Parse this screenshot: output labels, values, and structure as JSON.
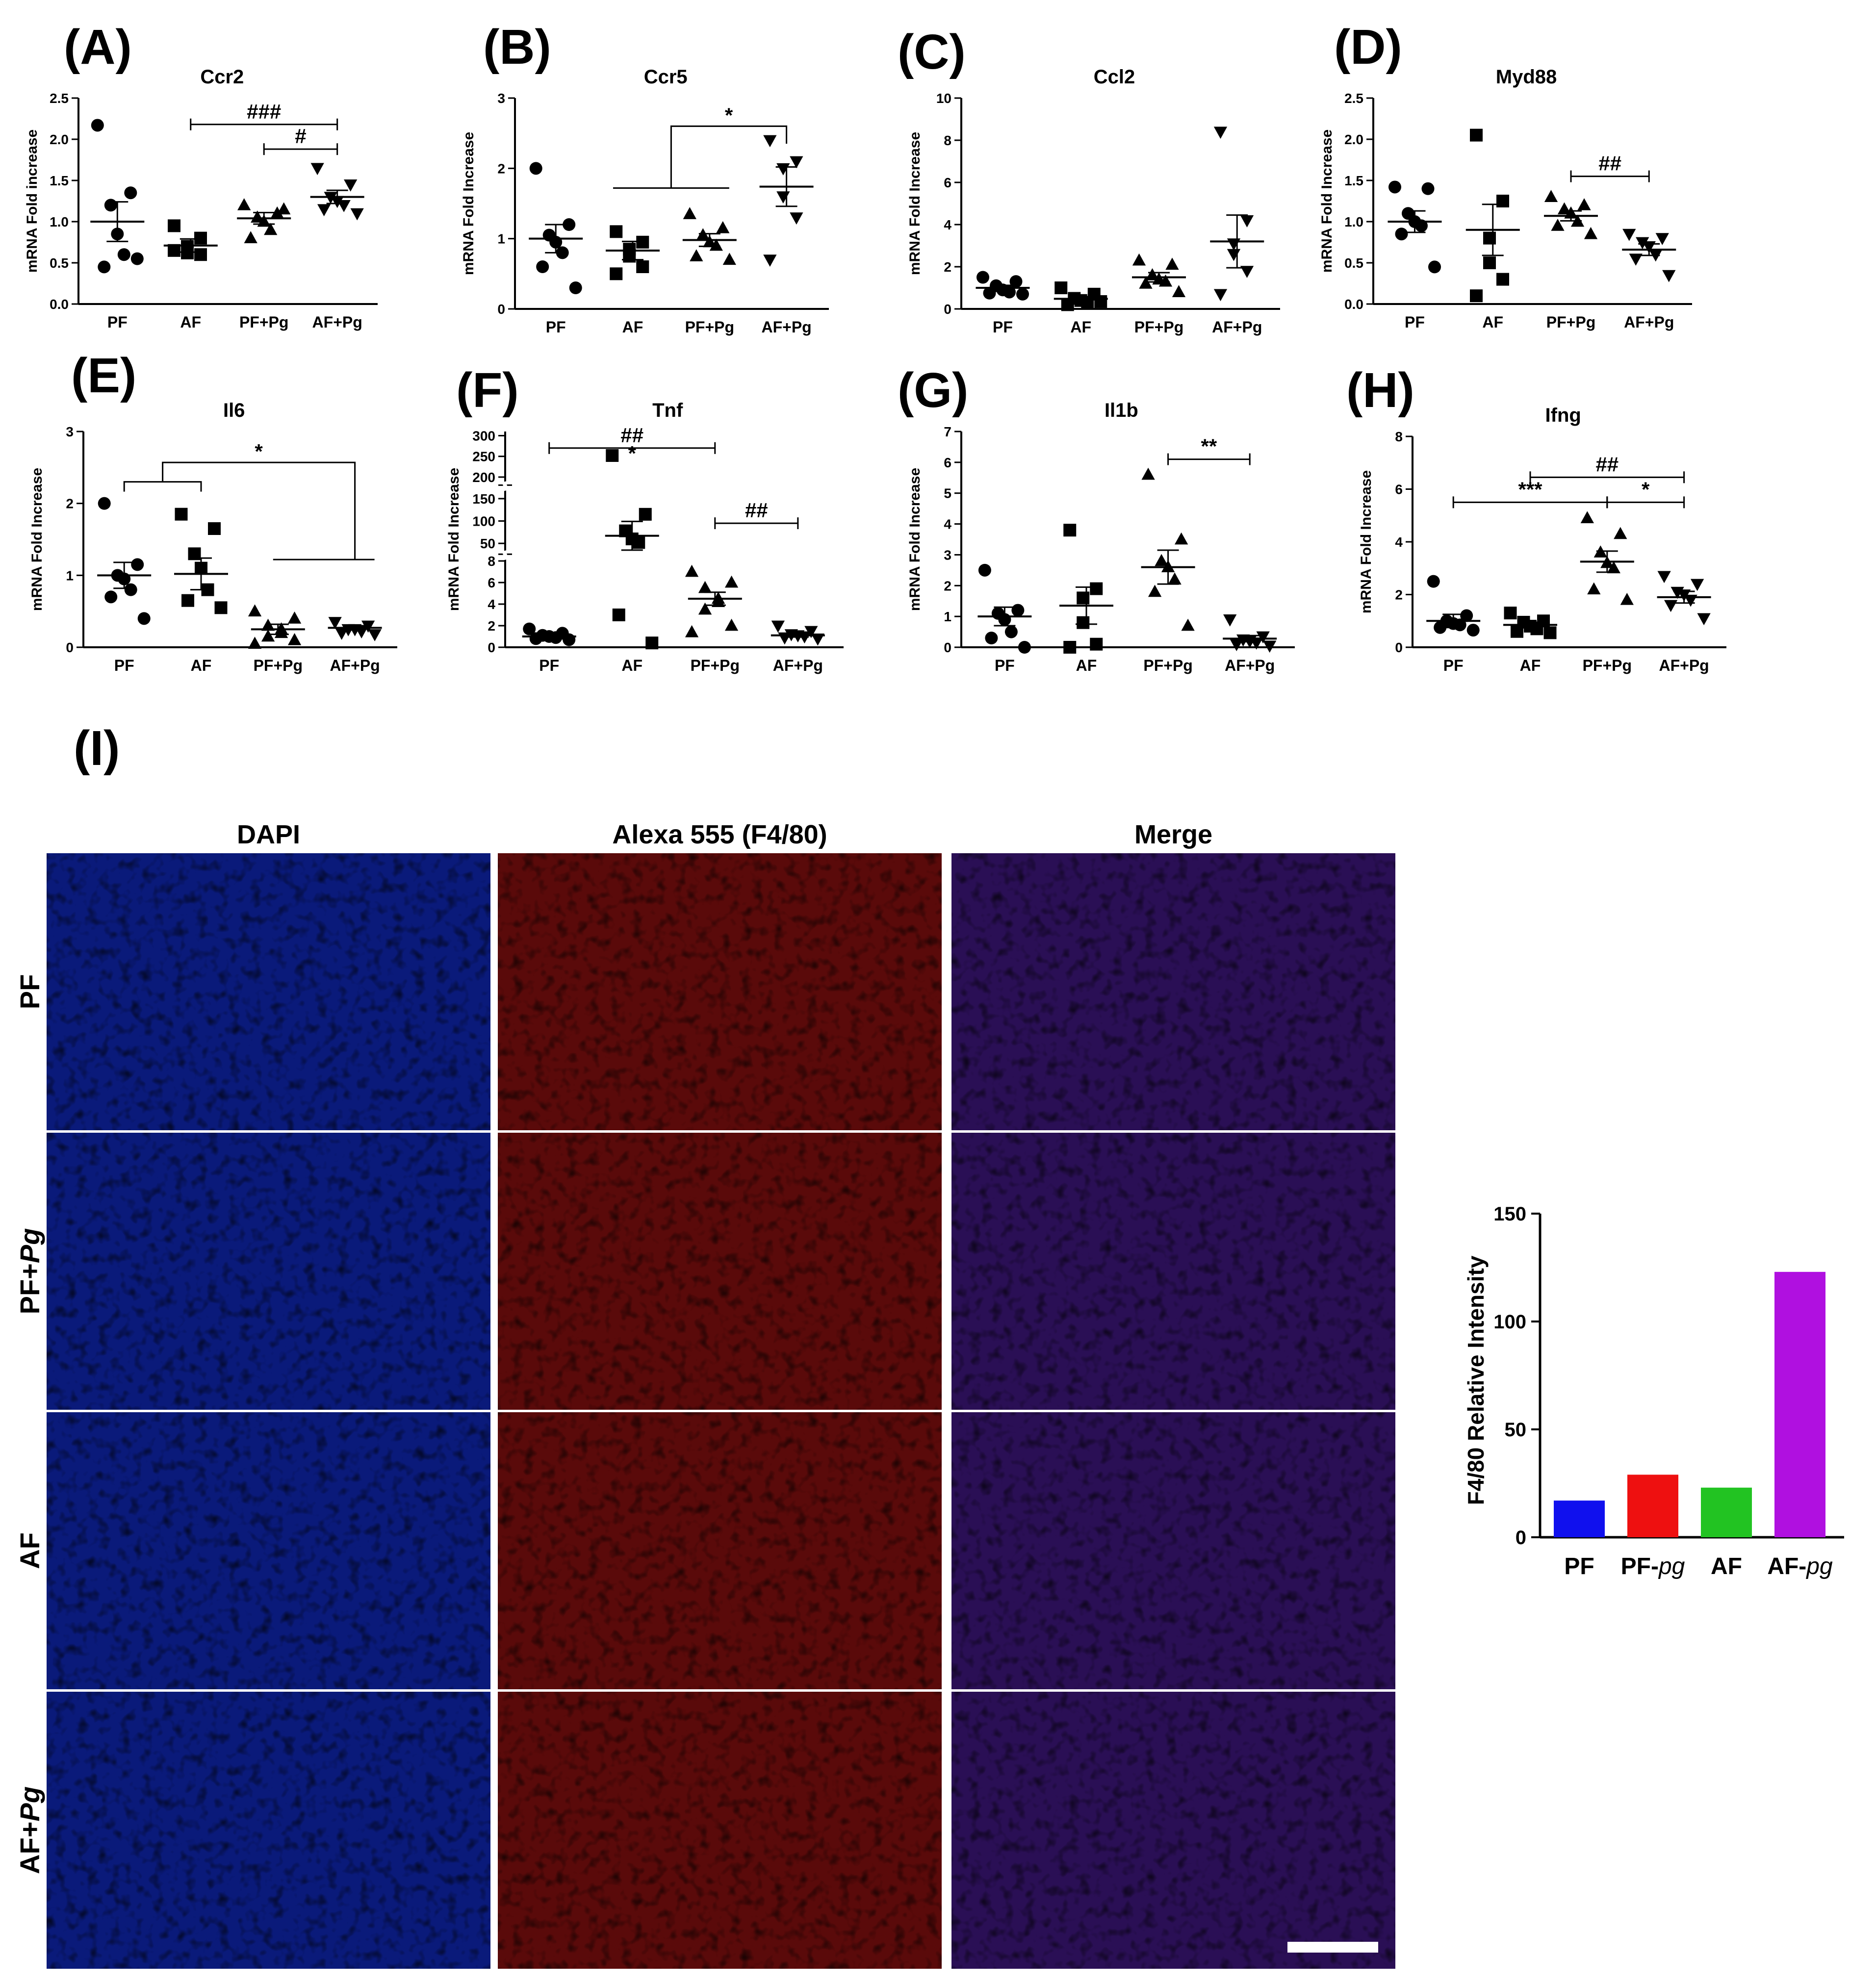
{
  "figure": {
    "panel_i_label": "(I)",
    "columns": [
      "DAPI",
      "Alexa 555 (F4/80)",
      "Merge"
    ],
    "rows": [
      {
        "main": "PF",
        "italic": ""
      },
      {
        "main": "PF+",
        "italic": "Pg"
      },
      {
        "main": "AF",
        "italic": ""
      },
      {
        "main": "AF+",
        "italic": "Pg"
      }
    ],
    "micrograph_colors": {
      "dapi": "#0a1a7a",
      "f480": "#5a0a0a",
      "merge": "#2a0f55",
      "scale_bar": "#ffffff"
    }
  },
  "chart_data": [
    {
      "type": "scatter",
      "label": "(A)",
      "title": "Ccr2",
      "ylabel": "mRNA Fold increase",
      "categories": [
        "PF",
        "AF",
        "PF+Pg",
        "AF+Pg"
      ],
      "ylim": [
        0,
        2.5
      ],
      "yticks": [
        "0.0",
        "0.5",
        "1.0",
        "1.5",
        "2.0",
        "2.5"
      ],
      "markers": [
        "circle",
        "square",
        "triangle-up",
        "triangle-down"
      ],
      "points": [
        [
          2.17,
          1.35,
          1.2,
          0.85,
          0.6,
          0.45,
          0.55
        ],
        [
          0.95,
          0.8,
          0.7,
          0.62,
          0.6,
          0.65
        ],
        [
          1.2,
          1.1,
          1.05,
          1.0,
          0.9,
          0.8,
          1.15
        ],
        [
          1.65,
          1.45,
          1.3,
          1.25,
          1.2,
          1.15,
          1.1
        ]
      ],
      "mean": [
        1.0,
        0.71,
        1.04,
        1.3
      ],
      "sem": [
        0.24,
        0.08,
        0.07,
        0.08
      ],
      "annotations": [
        {
          "text": "###",
          "from": 1,
          "to": 3,
          "y": 2.18
        },
        {
          "text": "#",
          "from": 2,
          "to": 3,
          "y": 1.88
        }
      ]
    },
    {
      "type": "scatter",
      "label": "(B)",
      "title": "Ccr5",
      "ylabel": "mRNA Fold Increase",
      "categories": [
        "PF",
        "AF",
        "PF+Pg",
        "AF+Pg"
      ],
      "ylim": [
        0,
        3
      ],
      "yticks": [
        "0",
        "1",
        "2",
        "3"
      ],
      "markers": [
        "circle",
        "square",
        "triangle-up",
        "triangle-down"
      ],
      "points": [
        [
          2.0,
          1.2,
          1.05,
          0.95,
          0.8,
          0.6,
          0.3
        ],
        [
          1.1,
          0.95,
          0.85,
          0.75,
          0.6,
          0.5
        ],
        [
          1.35,
          1.15,
          1.05,
          0.95,
          0.9,
          0.75,
          0.7
        ],
        [
          2.4,
          2.1,
          2.0,
          1.6,
          1.3,
          0.7
        ]
      ],
      "mean": [
        1.0,
        0.83,
        0.98,
        1.74
      ],
      "sem": [
        0.2,
        0.13,
        0.09,
        0.28
      ],
      "annotations": [
        {
          "text": "*",
          "type": "bracket-group",
          "from": 1,
          "to": 2,
          "target": 3,
          "ylow": 1.72,
          "y": 2.6
        }
      ]
    },
    {
      "type": "scatter",
      "label": "(C)",
      "title": "Ccl2",
      "ylabel": "mRNA Fold Increase",
      "categories": [
        "PF",
        "AF",
        "PF+Pg",
        "AF+Pg"
      ],
      "ylim": [
        0,
        10
      ],
      "yticks": [
        "0",
        "2",
        "4",
        "6",
        "8",
        "10"
      ],
      "markers": [
        "circle",
        "square",
        "triangle-up",
        "triangle-down"
      ],
      "points": [
        [
          1.5,
          1.3,
          1.1,
          0.9,
          0.8,
          0.75,
          0.7
        ],
        [
          1.0,
          0.7,
          0.5,
          0.4,
          0.3,
          0.2,
          0.35
        ],
        [
          2.3,
          2.1,
          1.6,
          1.4,
          1.3,
          1.2,
          0.8
        ],
        [
          8.4,
          4.2,
          3.1,
          2.6,
          1.8,
          0.7
        ]
      ],
      "mean": [
        1.0,
        0.48,
        1.5,
        3.2
      ],
      "sem": [
        0.12,
        0.1,
        0.22,
        1.25
      ],
      "annotations": []
    },
    {
      "type": "scatter",
      "label": "(D)",
      "title": "Myd88",
      "ylabel": "mRNA Fold Increase",
      "categories": [
        "PF",
        "AF",
        "PF+Pg",
        "AF+Pg"
      ],
      "ylim": [
        0,
        2.5
      ],
      "yticks": [
        "0.0",
        "0.5",
        "1.0",
        "1.5",
        "2.0",
        "2.5"
      ],
      "markers": [
        "circle",
        "square",
        "triangle-up",
        "triangle-down"
      ],
      "points": [
        [
          1.42,
          1.4,
          1.1,
          1.0,
          0.95,
          0.85,
          0.45
        ],
        [
          2.05,
          1.25,
          0.8,
          0.5,
          0.3,
          0.1
        ],
        [
          1.3,
          1.2,
          1.15,
          1.1,
          1.0,
          0.95,
          0.85
        ],
        [
          0.85,
          0.8,
          0.75,
          0.7,
          0.6,
          0.55,
          0.35
        ]
      ],
      "mean": [
        1.0,
        0.9,
        1.07,
        0.66
      ],
      "sem": [
        0.13,
        0.31,
        0.06,
        0.07
      ],
      "annotations": [
        {
          "text": "##",
          "from": 2,
          "to": 3,
          "y": 1.55
        }
      ]
    },
    {
      "type": "scatter",
      "label": "(E)",
      "title": "Il6",
      "ylabel": "mRNA Fold Increase",
      "categories": [
        "PF",
        "AF",
        "PF+Pg",
        "AF+Pg"
      ],
      "ylim": [
        0,
        3
      ],
      "yticks": [
        "0",
        "1",
        "2",
        "3"
      ],
      "markers": [
        "circle",
        "square",
        "triangle-up",
        "triangle-down"
      ],
      "points": [
        [
          2.0,
          1.15,
          1.0,
          0.95,
          0.8,
          0.7,
          0.4
        ],
        [
          1.85,
          1.65,
          1.3,
          1.1,
          0.8,
          0.65,
          0.55
        ],
        [
          0.5,
          0.4,
          0.3,
          0.25,
          0.2,
          0.15,
          0.1,
          0.05
        ],
        [
          0.35,
          0.3,
          0.25,
          0.25,
          0.22,
          0.2,
          0.18
        ]
      ],
      "mean": [
        1.0,
        1.02,
        0.25,
        0.27
      ],
      "sem": [
        0.18,
        0.22,
        0.07,
        0.03
      ],
      "annotations": [
        {
          "text": "*",
          "type": "bracket-group2",
          "groupA": [
            0,
            1
          ],
          "groupB": [
            2,
            3
          ],
          "yA": 2.3,
          "yB": 1.22,
          "y": 2.57
        }
      ]
    },
    {
      "type": "scatter-broken",
      "label": "(F)",
      "title": "Tnf",
      "ylabel": "mRNA Fold Increase",
      "categories": [
        "PF",
        "AF",
        "PF+Pg",
        "AF+Pg"
      ],
      "yticks_segments": [
        {
          "ticks": [
            0,
            2,
            4,
            6,
            8
          ],
          "range": [
            0,
            8
          ]
        },
        {
          "ticks": [
            50,
            100,
            150
          ],
          "range": [
            30,
            165
          ]
        },
        {
          "ticks": [
            200,
            250,
            300
          ],
          "range": [
            185,
            310
          ]
        }
      ],
      "markers": [
        "circle",
        "square",
        "triangle-up",
        "triangle-down"
      ],
      "points": [
        [
          1.7,
          1.3,
          1.1,
          1.0,
          0.9,
          0.8,
          0.7
        ],
        [
          252,
          115,
          78,
          60,
          52,
          3,
          0.4
        ],
        [
          7.0,
          6.0,
          5.5,
          4.5,
          4.2,
          3.5,
          2.0,
          1.4
        ],
        [
          2.0,
          1.5,
          1.2,
          1.1,
          1.0,
          0.9,
          0.8
        ]
      ],
      "mean": [
        1.0,
        67,
        4.5,
        1.1
      ],
      "sem": [
        0.12,
        32,
        0.6,
        0.15
      ],
      "annotations": [
        {
          "text": "*",
          "type": "single",
          "at": 1,
          "y": 240
        },
        {
          "text": "##",
          "from": 0,
          "to": 2,
          "y": 270
        },
        {
          "text": "##",
          "from": 2,
          "to": 3,
          "y": 95
        }
      ]
    },
    {
      "type": "scatter",
      "label": "(G)",
      "title": "Il1b",
      "ylabel": "mRNA Fold Increase",
      "categories": [
        "PF",
        "AF",
        "PF+Pg",
        "AF+Pg"
      ],
      "ylim": [
        0,
        7
      ],
      "yticks": [
        "0",
        "1",
        "2",
        "3",
        "4",
        "5",
        "6",
        "7"
      ],
      "markers": [
        "circle",
        "square",
        "triangle-up",
        "triangle-down"
      ],
      "points": [
        [
          2.5,
          1.2,
          1.1,
          0.9,
          0.5,
          0.3,
          0.0
        ],
        [
          3.8,
          1.9,
          1.6,
          0.8,
          0.1,
          0.0
        ],
        [
          5.6,
          3.5,
          2.8,
          2.6,
          2.2,
          1.8,
          0.7
        ],
        [
          0.9,
          0.35,
          0.25,
          0.2,
          0.15,
          0.1,
          0.05
        ]
      ],
      "mean": [
        1.0,
        1.35,
        2.6,
        0.28
      ],
      "sem": [
        0.3,
        0.6,
        0.55,
        0.1
      ],
      "annotations": [
        {
          "text": "**",
          "from": 2,
          "to": 3,
          "y": 6.1
        }
      ]
    },
    {
      "type": "scatter",
      "label": "(H)",
      "title": "Ifng",
      "ylabel": "mRNA Fold Increase",
      "categories": [
        "PF",
        "AF",
        "PF+Pg",
        "AF+Pg"
      ],
      "ylim": [
        0,
        8
      ],
      "yticks": [
        "0",
        "2",
        "4",
        "6",
        "8"
      ],
      "markers": [
        "circle",
        "square",
        "triangle-up",
        "triangle-down"
      ],
      "points": [
        [
          2.5,
          1.2,
          1.0,
          0.9,
          0.85,
          0.75,
          0.65
        ],
        [
          1.3,
          1.0,
          0.95,
          0.8,
          0.7,
          0.6,
          0.55
        ],
        [
          4.9,
          4.3,
          3.6,
          3.2,
          3.0,
          2.2,
          1.8
        ],
        [
          2.7,
          2.4,
          2.1,
          2.0,
          1.8,
          1.6,
          1.1
        ]
      ],
      "mean": [
        1.0,
        0.85,
        3.25,
        1.9
      ],
      "sem": [
        0.25,
        0.1,
        0.4,
        0.22
      ],
      "annotations": [
        {
          "text": "##",
          "from": 1,
          "to": 3,
          "y": 6.45
        },
        {
          "text": "***",
          "from": 0,
          "to": 2,
          "y": 5.5
        },
        {
          "text": "*",
          "from": 2,
          "to": 3,
          "y": 5.5
        }
      ]
    },
    {
      "type": "bar",
      "label": "",
      "title": "",
      "categories": [
        {
          "main": "PF",
          "italic": ""
        },
        {
          "main": "PF-",
          "italic": "pg"
        },
        {
          "main": "AF",
          "italic": ""
        },
        {
          "main": "AF-",
          "italic": "pg"
        }
      ],
      "values": [
        17,
        29,
        23,
        123
      ],
      "colors": [
        "#1010ee",
        "#ee1010",
        "#22c322",
        "#b010e0"
      ],
      "ylabel": "F4/80 Relative Intensity",
      "ylim": [
        0,
        150
      ],
      "yticks": [
        "0",
        "50",
        "100",
        "150"
      ]
    }
  ]
}
